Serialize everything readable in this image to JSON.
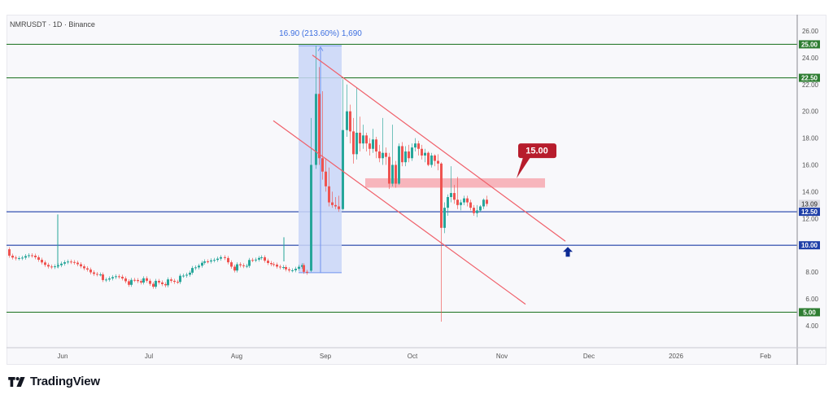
{
  "header": {
    "title": "NMRUSDT · 1D · Binance"
  },
  "brand": {
    "name": "TradingView",
    "logo_icon": "tradingview-logo-icon"
  },
  "colors": {
    "background": "#f8f8fb",
    "support_green": "#2e7d32",
    "support_blue": "#1e3fa8",
    "channel_red": "#f0606a",
    "zone_pink": "#f7a9b0",
    "measure_blue": "#c9d6f7",
    "bull_candle": "#26a69a",
    "bear_candle": "#ef5350",
    "callout_red": "#b71c2c",
    "arrow_navy": "#0d2a94"
  },
  "chart_data": {
    "type": "candlestick",
    "title": "NMRUSDT · 1D · Binance",
    "xlabel": "",
    "ylabel": "",
    "ylim": [
      3.0,
      27.0
    ],
    "grid": false,
    "y_ticks": [
      "26.00",
      "24.00",
      "22.00",
      "20.00",
      "18.00",
      "16.00",
      "14.00",
      "12.00",
      "10.00",
      "8.00",
      "6.00",
      "4.00"
    ],
    "x_ticks": [
      "Jun",
      "Jul",
      "Aug",
      "Sep",
      "Oct",
      "Nov",
      "Dec",
      "2026",
      "Feb"
    ],
    "current_price": "13.09",
    "horizontal_levels": [
      {
        "value": 25.0,
        "label": "25.00",
        "color": "#2e7d32"
      },
      {
        "value": 22.5,
        "label": "22.50",
        "color": "#2e7d32"
      },
      {
        "value": 12.5,
        "label": "12.50",
        "color": "#1e3fa8"
      },
      {
        "value": 10.0,
        "label": "10.00",
        "color": "#1e3fa8"
      },
      {
        "value": 5.0,
        "label": "5.00",
        "color": "#2e7d32"
      }
    ],
    "annotations": {
      "measure": "16.90 (213.60%) 1,690",
      "resistance_zone_label": "15.00",
      "resistance_zone_range": [
        14.3,
        15.0
      ],
      "descending_channel": true,
      "target_arrow_price": 10.0
    },
    "approx_closes": {
      "Jun": 8.6,
      "Jul": 7.2,
      "Aug": 8.4,
      "Aug_end": 8.1,
      "Sep_spike_high": 24.9,
      "Sep_mid": 17.8,
      "Oct_start": 17.0,
      "Oct_low_wick": 4.3,
      "Oct_end": 13.09
    }
  }
}
